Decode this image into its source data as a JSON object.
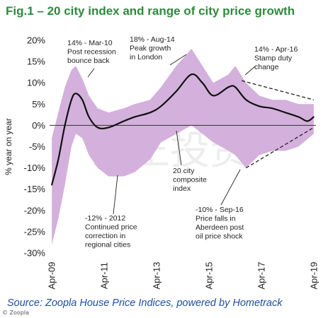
{
  "title": "Fig.1 – 20 city index and range of city price growth",
  "source": "Source: Zoopla House Price Indices, powered by Hometrack",
  "credit": "© Zoopla",
  "chart_data": {
    "type": "area",
    "title": "Fig.1 – 20 city index and range of city price growth",
    "ylabel": "% year on year",
    "xlabel": "",
    "ylim": [
      -30,
      20
    ],
    "ytick_values": [
      20,
      15,
      10,
      5,
      0,
      -5,
      -10,
      -15,
      -20,
      -25,
      -30
    ],
    "ytick_labels": [
      "20%",
      "15%",
      "10%",
      "5%",
      "0%",
      "-5%",
      "-10%",
      "-15%",
      "-20%",
      "-25%",
      "-30%"
    ],
    "xlim": [
      "2009-03",
      "2019-05"
    ],
    "xticks": [
      {
        "date": "2009-04",
        "label": "Apr-09"
      },
      {
        "date": "2011-04",
        "label": "Apr-11"
      },
      {
        "date": "2013-04",
        "label": "Apr-13"
      },
      {
        "date": "2015-04",
        "label": "Apr-15"
      },
      {
        "date": "2017-04",
        "label": "Apr-17"
      },
      {
        "date": "2019-04",
        "label": "Apr-19"
      }
    ],
    "colors": {
      "range": "#d4b0dc",
      "index": "#111111",
      "zero_line": "#333333",
      "title": "#2e8a3c",
      "source": "#1f4ea0"
    },
    "series": [
      {
        "name": "Range of city price growth",
        "kind": "range",
        "points": [
          {
            "x": "2009-04",
            "lo": -28,
            "hi": -3
          },
          {
            "x": "2009-07",
            "lo": -22,
            "hi": 3
          },
          {
            "x": "2009-10",
            "lo": -14,
            "hi": 9
          },
          {
            "x": "2010-01",
            "lo": -5,
            "hi": 13
          },
          {
            "x": "2010-03",
            "lo": -2,
            "hi": 14
          },
          {
            "x": "2010-06",
            "lo": -3,
            "hi": 11
          },
          {
            "x": "2010-09",
            "lo": -7,
            "hi": 7
          },
          {
            "x": "2011-01",
            "lo": -10,
            "hi": 4
          },
          {
            "x": "2011-06",
            "lo": -12,
            "hi": 3
          },
          {
            "x": "2012-01",
            "lo": -12,
            "hi": 4
          },
          {
            "x": "2012-06",
            "lo": -11,
            "hi": 5
          },
          {
            "x": "2013-01",
            "lo": -8,
            "hi": 6
          },
          {
            "x": "2013-06",
            "lo": -4,
            "hi": 9
          },
          {
            "x": "2014-01",
            "lo": -2,
            "hi": 14
          },
          {
            "x": "2014-08",
            "lo": 0,
            "hi": 18
          },
          {
            "x": "2015-01",
            "lo": -2,
            "hi": 14
          },
          {
            "x": "2015-06",
            "lo": -4,
            "hi": 10
          },
          {
            "x": "2016-01",
            "lo": -6,
            "hi": 12
          },
          {
            "x": "2016-04",
            "lo": -7,
            "hi": 14
          },
          {
            "x": "2016-09",
            "lo": -10,
            "hi": 10
          },
          {
            "x": "2017-03",
            "lo": -7,
            "hi": 7
          },
          {
            "x": "2017-09",
            "lo": -6,
            "hi": 6
          },
          {
            "x": "2018-03",
            "lo": -6,
            "hi": 6
          },
          {
            "x": "2018-09",
            "lo": -5,
            "hi": 5
          },
          {
            "x": "2019-04",
            "lo": -2,
            "hi": 5
          }
        ]
      },
      {
        "name": "20 city composite index",
        "kind": "line",
        "points": [
          {
            "x": "2009-04",
            "y": -14
          },
          {
            "x": "2009-07",
            "y": -8
          },
          {
            "x": "2009-10",
            "y": 0
          },
          {
            "x": "2010-01",
            "y": 6
          },
          {
            "x": "2010-03",
            "y": 7.5
          },
          {
            "x": "2010-06",
            "y": 6
          },
          {
            "x": "2010-09",
            "y": 2
          },
          {
            "x": "2011-01",
            "y": -0.5
          },
          {
            "x": "2011-06",
            "y": -0.5
          },
          {
            "x": "2012-01",
            "y": 1
          },
          {
            "x": "2012-06",
            "y": 2
          },
          {
            "x": "2013-01",
            "y": 3
          },
          {
            "x": "2013-06",
            "y": 4.5
          },
          {
            "x": "2014-01",
            "y": 8
          },
          {
            "x": "2014-08",
            "y": 12
          },
          {
            "x": "2015-01",
            "y": 10
          },
          {
            "x": "2015-06",
            "y": 7
          },
          {
            "x": "2016-01",
            "y": 9
          },
          {
            "x": "2016-04",
            "y": 9
          },
          {
            "x": "2016-09",
            "y": 6
          },
          {
            "x": "2017-03",
            "y": 4.5
          },
          {
            "x": "2017-09",
            "y": 4
          },
          {
            "x": "2018-03",
            "y": 3
          },
          {
            "x": "2018-09",
            "y": 2
          },
          {
            "x": "2019-01",
            "y": 1
          },
          {
            "x": "2019-04",
            "y": 2
          }
        ]
      }
    ],
    "annotations": [
      {
        "lines": [
          "14% - Mar-10",
          "Post recession",
          "bounce back"
        ]
      },
      {
        "lines": [
          "18% - Aug-14",
          "Peak growth",
          "in London"
        ]
      },
      {
        "lines": [
          "14% - Apr-16",
          "Stamp duty",
          "change"
        ]
      },
      {
        "lines": [
          "20 city",
          "composite",
          "index"
        ]
      },
      {
        "lines": [
          "-12% - 2012",
          "Continued price",
          "correction in",
          "regional cities"
        ]
      },
      {
        "lines": [
          "-10% - Sep-16",
          "Price falls in",
          "Aberdeen post",
          "oil price shock"
        ]
      }
    ],
    "watermark": "涌正投资"
  }
}
